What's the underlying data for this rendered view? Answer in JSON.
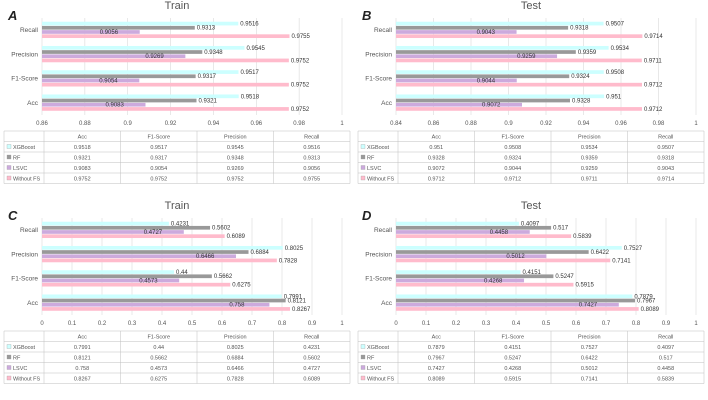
{
  "chart_data": [
    {
      "type": "bar",
      "panel_label": "A",
      "title": "Train",
      "categories": [
        "Acc",
        "F1-Score",
        "Precision",
        "Recall"
      ],
      "xlim": [
        0.86,
        1
      ],
      "xticks": [
        "0.86",
        "0.88",
        "0.9",
        "0.92",
        "0.94",
        "0.96",
        "0.98",
        "1"
      ],
      "series": [
        {
          "name": "XGBoost",
          "color": "#ccffff",
          "values": [
            0.9518,
            0.9517,
            0.9545,
            0.9516
          ]
        },
        {
          "name": "RF",
          "color": "#999999",
          "values": [
            0.9321,
            0.9317,
            0.9348,
            0.9313
          ]
        },
        {
          "name": "LSVC",
          "color": "#ccaadd",
          "values": [
            0.9083,
            0.9054,
            0.9269,
            0.9056
          ]
        },
        {
          "name": "Without FS",
          "color": "#ffbbcc",
          "values": [
            0.9752,
            0.9752,
            0.9752,
            0.9755
          ]
        }
      ],
      "table": {
        "header": [
          "Acc",
          "F1-Score",
          "Precision",
          "Recall"
        ],
        "rows": [
          [
            "0.9518",
            "0.9517",
            "0.9545",
            "0.9516"
          ],
          [
            "0.9321",
            "0.9317",
            "0.9348",
            "0.9313"
          ],
          [
            "0.9083",
            "0.9054",
            "0.9269",
            "0.9056"
          ],
          [
            "0.9752",
            "0.9752",
            "0.9752",
            "0.9755"
          ]
        ]
      }
    },
    {
      "type": "bar",
      "panel_label": "B",
      "title": "Test",
      "categories": [
        "Acc",
        "F1-Score",
        "Precision",
        "Recall"
      ],
      "xlim": [
        0.84,
        1
      ],
      "xticks": [
        "0.84",
        "0.86",
        "0.88",
        "0.9",
        "0.92",
        "0.94",
        "0.96",
        "0.98",
        "1"
      ],
      "series": [
        {
          "name": "XGBoost",
          "color": "#ccffff",
          "values": [
            0.951,
            0.9508,
            0.9534,
            0.9507
          ]
        },
        {
          "name": "RF",
          "color": "#999999",
          "values": [
            0.9328,
            0.9324,
            0.9359,
            0.9318
          ]
        },
        {
          "name": "LSVC",
          "color": "#ccaadd",
          "values": [
            0.9072,
            0.9044,
            0.9259,
            0.9043
          ]
        },
        {
          "name": "Without FS",
          "color": "#ffbbcc",
          "values": [
            0.9712,
            0.9712,
            0.9711,
            0.9714
          ]
        }
      ],
      "table": {
        "header": [
          "Acc",
          "F1-Score",
          "Precision",
          "Recall"
        ],
        "rows": [
          [
            "0.951",
            "0.9508",
            "0.9534",
            "0.9507"
          ],
          [
            "0.9328",
            "0.9324",
            "0.9359",
            "0.9318"
          ],
          [
            "0.9072",
            "0.9044",
            "0.9259",
            "0.9043"
          ],
          [
            "0.9712",
            "0.9712",
            "0.9711",
            "0.9714"
          ]
        ]
      }
    },
    {
      "type": "bar",
      "panel_label": "C",
      "title": "Train",
      "categories": [
        "Acc",
        "F1-Score",
        "Precision",
        "Recall"
      ],
      "xlim": [
        0,
        1
      ],
      "xticks": [
        "0",
        "0.1",
        "0.2",
        "0.3",
        "0.4",
        "0.5",
        "0.6",
        "0.7",
        "0.8",
        "0.9",
        "1"
      ],
      "series": [
        {
          "name": "XGBoost",
          "color": "#ccffff",
          "values": [
            0.7991,
            0.44,
            0.8025,
            0.4231
          ]
        },
        {
          "name": "RF",
          "color": "#999999",
          "values": [
            0.8121,
            0.5662,
            0.6884,
            0.5602
          ]
        },
        {
          "name": "LSVC",
          "color": "#ccaadd",
          "values": [
            0.758,
            0.4573,
            0.6466,
            0.4727
          ]
        },
        {
          "name": "Without FS",
          "color": "#ffbbcc",
          "values": [
            0.8267,
            0.6275,
            0.7828,
            0.6089
          ]
        }
      ],
      "table": {
        "header": [
          "Acc",
          "F1-Score",
          "Precision",
          "Recall"
        ],
        "rows": [
          [
            "0.7991",
            "0.44",
            "0.8025",
            "0.4231"
          ],
          [
            "0.8121",
            "0.5662",
            "0.6884",
            "0.5602"
          ],
          [
            "0.758",
            "0.4573",
            "0.6466",
            "0.4727"
          ],
          [
            "0.8267",
            "0.6275",
            "0.7828",
            "0.6089"
          ]
        ]
      }
    },
    {
      "type": "bar",
      "panel_label": "D",
      "title": "Test",
      "categories": [
        "Acc",
        "F1-Score",
        "Precision",
        "Recall"
      ],
      "xlim": [
        0,
        1
      ],
      "xticks": [
        "0",
        "0.1",
        "0.2",
        "0.3",
        "0.4",
        "0.5",
        "0.6",
        "0.7",
        "0.8",
        "0.9",
        "1"
      ],
      "series": [
        {
          "name": "XGBoost",
          "color": "#ccffff",
          "values": [
            0.7879,
            0.4151,
            0.7527,
            0.4097
          ]
        },
        {
          "name": "RF",
          "color": "#999999",
          "values": [
            0.7967,
            0.5247,
            0.6422,
            0.517
          ]
        },
        {
          "name": "LSVC",
          "color": "#ccaadd",
          "values": [
            0.7427,
            0.4268,
            0.5012,
            0.4458
          ]
        },
        {
          "name": "Without FS",
          "color": "#ffbbcc",
          "values": [
            0.8089,
            0.5915,
            0.7141,
            0.5839
          ]
        }
      ],
      "table": {
        "header": [
          "Acc",
          "F1-Score",
          "Precision",
          "Recall"
        ],
        "rows": [
          [
            "0.7879",
            "0.4151",
            "0.7527",
            "0.4097"
          ],
          [
            "0.7967",
            "0.5247",
            "0.6422",
            "0.517"
          ],
          [
            "0.7427",
            "0.4268",
            "0.5012",
            "0.4458"
          ],
          [
            "0.8089",
            "0.5915",
            "0.7141",
            "0.5839"
          ]
        ]
      }
    }
  ]
}
